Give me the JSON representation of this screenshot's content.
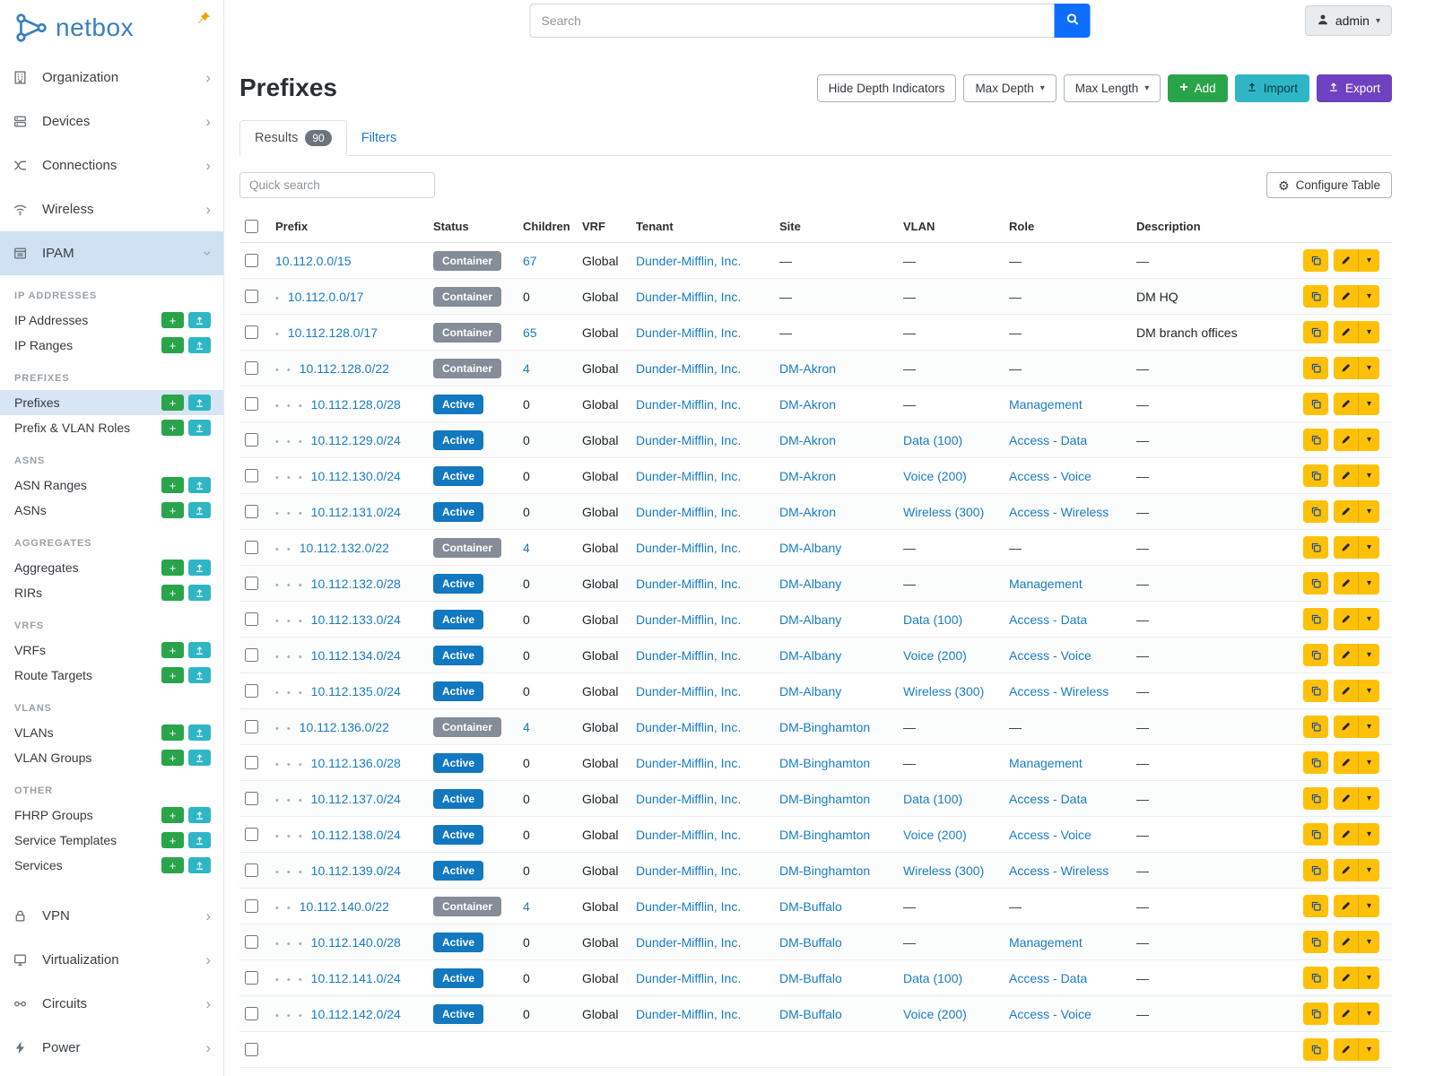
{
  "brand": {
    "name": "netbox"
  },
  "topbar": {
    "search_placeholder": "Search",
    "user_label": "admin"
  },
  "page": {
    "title": "Prefixes",
    "toolbar": {
      "hide_depth": "Hide Depth Indicators",
      "max_depth": "Max Depth",
      "max_length": "Max Length",
      "add": "Add",
      "import": "Import",
      "export": "Export"
    },
    "tabs": [
      {
        "label": "Results",
        "badge": "90"
      },
      {
        "label": "Filters"
      }
    ],
    "quick_search_placeholder": "Quick search",
    "configure_table": "Configure Table"
  },
  "sidebar": {
    "items": [
      {
        "label": "Organization",
        "icon": "organization-icon"
      },
      {
        "label": "Devices",
        "icon": "devices-icon"
      },
      {
        "label": "Connections",
        "icon": "connections-icon"
      },
      {
        "label": "Wireless",
        "icon": "wireless-icon"
      },
      {
        "label": "IPAM",
        "icon": "ipam-icon",
        "expanded": true,
        "groups": [
          {
            "title": "IP ADDRESSES",
            "links": [
              {
                "label": "IP Addresses"
              },
              {
                "label": "IP Ranges"
              }
            ]
          },
          {
            "title": "PREFIXES",
            "links": [
              {
                "label": "Prefixes",
                "active": true
              },
              {
                "label": "Prefix & VLAN Roles"
              }
            ]
          },
          {
            "title": "ASNS",
            "links": [
              {
                "label": "ASN Ranges"
              },
              {
                "label": "ASNs"
              }
            ]
          },
          {
            "title": "AGGREGATES",
            "links": [
              {
                "label": "Aggregates"
              },
              {
                "label": "RIRs"
              }
            ]
          },
          {
            "title": "VRFS",
            "links": [
              {
                "label": "VRFs"
              },
              {
                "label": "Route Targets"
              }
            ]
          },
          {
            "title": "VLANS",
            "links": [
              {
                "label": "VLANs"
              },
              {
                "label": "VLAN Groups"
              }
            ]
          },
          {
            "title": "OTHER",
            "links": [
              {
                "label": "FHRP Groups"
              },
              {
                "label": "Service Templates"
              },
              {
                "label": "Services"
              }
            ]
          }
        ]
      },
      {
        "label": "VPN",
        "icon": "vpn-icon"
      },
      {
        "label": "Virtualization",
        "icon": "virtualization-icon"
      },
      {
        "label": "Circuits",
        "icon": "circuits-icon"
      },
      {
        "label": "Power",
        "icon": "power-icon"
      }
    ]
  },
  "table": {
    "columns": [
      "Prefix",
      "Status",
      "Children",
      "VRF",
      "Tenant",
      "Site",
      "VLAN",
      "Role",
      "Description"
    ],
    "rows": [
      {
        "depth": 0,
        "prefix": "10.112.0.0/15",
        "status": "Container",
        "children": "67",
        "vrf": "Global",
        "tenant": "Dunder-Mifflin, Inc.",
        "site": "—",
        "vlan": "—",
        "role": "—",
        "description": "—"
      },
      {
        "depth": 1,
        "prefix": "10.112.0.0/17",
        "status": "Container",
        "children": "0",
        "vrf": "Global",
        "tenant": "Dunder-Mifflin, Inc.",
        "site": "—",
        "vlan": "—",
        "role": "—",
        "description": "DM HQ"
      },
      {
        "depth": 1,
        "prefix": "10.112.128.0/17",
        "status": "Container",
        "children": "65",
        "vrf": "Global",
        "tenant": "Dunder-Mifflin, Inc.",
        "site": "—",
        "vlan": "—",
        "role": "—",
        "description": "DM branch offices"
      },
      {
        "depth": 2,
        "prefix": "10.112.128.0/22",
        "status": "Container",
        "children": "4",
        "vrf": "Global",
        "tenant": "Dunder-Mifflin, Inc.",
        "site": "DM-Akron",
        "vlan": "—",
        "role": "—",
        "description": "—"
      },
      {
        "depth": 3,
        "prefix": "10.112.128.0/28",
        "status": "Active",
        "children": "0",
        "vrf": "Global",
        "tenant": "Dunder-Mifflin, Inc.",
        "site": "DM-Akron",
        "vlan": "—",
        "role": "Management",
        "description": "—"
      },
      {
        "depth": 3,
        "prefix": "10.112.129.0/24",
        "status": "Active",
        "children": "0",
        "vrf": "Global",
        "tenant": "Dunder-Mifflin, Inc.",
        "site": "DM-Akron",
        "vlan": "Data (100)",
        "role": "Access - Data",
        "description": "—"
      },
      {
        "depth": 3,
        "prefix": "10.112.130.0/24",
        "status": "Active",
        "children": "0",
        "vrf": "Global",
        "tenant": "Dunder-Mifflin, Inc.",
        "site": "DM-Akron",
        "vlan": "Voice (200)",
        "role": "Access - Voice",
        "description": "—"
      },
      {
        "depth": 3,
        "prefix": "10.112.131.0/24",
        "status": "Active",
        "children": "0",
        "vrf": "Global",
        "tenant": "Dunder-Mifflin, Inc.",
        "site": "DM-Akron",
        "vlan": "Wireless (300)",
        "role": "Access - Wireless",
        "description": "—"
      },
      {
        "depth": 2,
        "prefix": "10.112.132.0/22",
        "status": "Container",
        "children": "4",
        "vrf": "Global",
        "tenant": "Dunder-Mifflin, Inc.",
        "site": "DM-Albany",
        "vlan": "—",
        "role": "—",
        "description": "—"
      },
      {
        "depth": 3,
        "prefix": "10.112.132.0/28",
        "status": "Active",
        "children": "0",
        "vrf": "Global",
        "tenant": "Dunder-Mifflin, Inc.",
        "site": "DM-Albany",
        "vlan": "—",
        "role": "Management",
        "description": "—"
      },
      {
        "depth": 3,
        "prefix": "10.112.133.0/24",
        "status": "Active",
        "children": "0",
        "vrf": "Global",
        "tenant": "Dunder-Mifflin, Inc.",
        "site": "DM-Albany",
        "vlan": "Data (100)",
        "role": "Access - Data",
        "description": "—"
      },
      {
        "depth": 3,
        "prefix": "10.112.134.0/24",
        "status": "Active",
        "children": "0",
        "vrf": "Global",
        "tenant": "Dunder-Mifflin, Inc.",
        "site": "DM-Albany",
        "vlan": "Voice (200)",
        "role": "Access - Voice",
        "description": "—"
      },
      {
        "depth": 3,
        "prefix": "10.112.135.0/24",
        "status": "Active",
        "children": "0",
        "vrf": "Global",
        "tenant": "Dunder-Mifflin, Inc.",
        "site": "DM-Albany",
        "vlan": "Wireless (300)",
        "role": "Access - Wireless",
        "description": "—"
      },
      {
        "depth": 2,
        "prefix": "10.112.136.0/22",
        "status": "Container",
        "children": "4",
        "vrf": "Global",
        "tenant": "Dunder-Mifflin, Inc.",
        "site": "DM-Binghamton",
        "vlan": "—",
        "role": "—",
        "description": "—"
      },
      {
        "depth": 3,
        "prefix": "10.112.136.0/28",
        "status": "Active",
        "children": "0",
        "vrf": "Global",
        "tenant": "Dunder-Mifflin, Inc.",
        "site": "DM-Binghamton",
        "vlan": "—",
        "role": "Management",
        "description": "—"
      },
      {
        "depth": 3,
        "prefix": "10.112.137.0/24",
        "status": "Active",
        "children": "0",
        "vrf": "Global",
        "tenant": "Dunder-Mifflin, Inc.",
        "site": "DM-Binghamton",
        "vlan": "Data (100)",
        "role": "Access - Data",
        "description": "—"
      },
      {
        "depth": 3,
        "prefix": "10.112.138.0/24",
        "status": "Active",
        "children": "0",
        "vrf": "Global",
        "tenant": "Dunder-Mifflin, Inc.",
        "site": "DM-Binghamton",
        "vlan": "Voice (200)",
        "role": "Access - Voice",
        "description": "—"
      },
      {
        "depth": 3,
        "prefix": "10.112.139.0/24",
        "status": "Active",
        "children": "0",
        "vrf": "Global",
        "tenant": "Dunder-Mifflin, Inc.",
        "site": "DM-Binghamton",
        "vlan": "Wireless (300)",
        "role": "Access - Wireless",
        "description": "—"
      },
      {
        "depth": 2,
        "prefix": "10.112.140.0/22",
        "status": "Container",
        "children": "4",
        "vrf": "Global",
        "tenant": "Dunder-Mifflin, Inc.",
        "site": "DM-Buffalo",
        "vlan": "—",
        "role": "—",
        "description": "—"
      },
      {
        "depth": 3,
        "prefix": "10.112.140.0/28",
        "status": "Active",
        "children": "0",
        "vrf": "Global",
        "tenant": "Dunder-Mifflin, Inc.",
        "site": "DM-Buffalo",
        "vlan": "—",
        "role": "Management",
        "description": "—"
      },
      {
        "depth": 3,
        "prefix": "10.112.141.0/24",
        "status": "Active",
        "children": "0",
        "vrf": "Global",
        "tenant": "Dunder-Mifflin, Inc.",
        "site": "DM-Buffalo",
        "vlan": "Data (100)",
        "role": "Access - Data",
        "description": "—"
      },
      {
        "depth": 3,
        "prefix": "10.112.142.0/24",
        "status": "Active",
        "children": "0",
        "vrf": "Global",
        "tenant": "Dunder-Mifflin, Inc.",
        "site": "DM-Buffalo",
        "vlan": "Voice (200)",
        "role": "Access - Voice",
        "description": "—"
      }
    ]
  },
  "colors": {
    "brand_blue": "#3a7fc1",
    "link": "#1a7cc4",
    "status_active": "#1278bf",
    "status_container": "#848d98",
    "green": "#2aa44a",
    "teal": "#2fb6c6",
    "purple": "#6f42c1",
    "yellow": "#ffc107",
    "search_blue": "#0d6efd",
    "sidebar_highlight": "#cfe1f3",
    "sidebar_active_item": "#d7e5f4",
    "pin_orange": "#f59f00"
  }
}
